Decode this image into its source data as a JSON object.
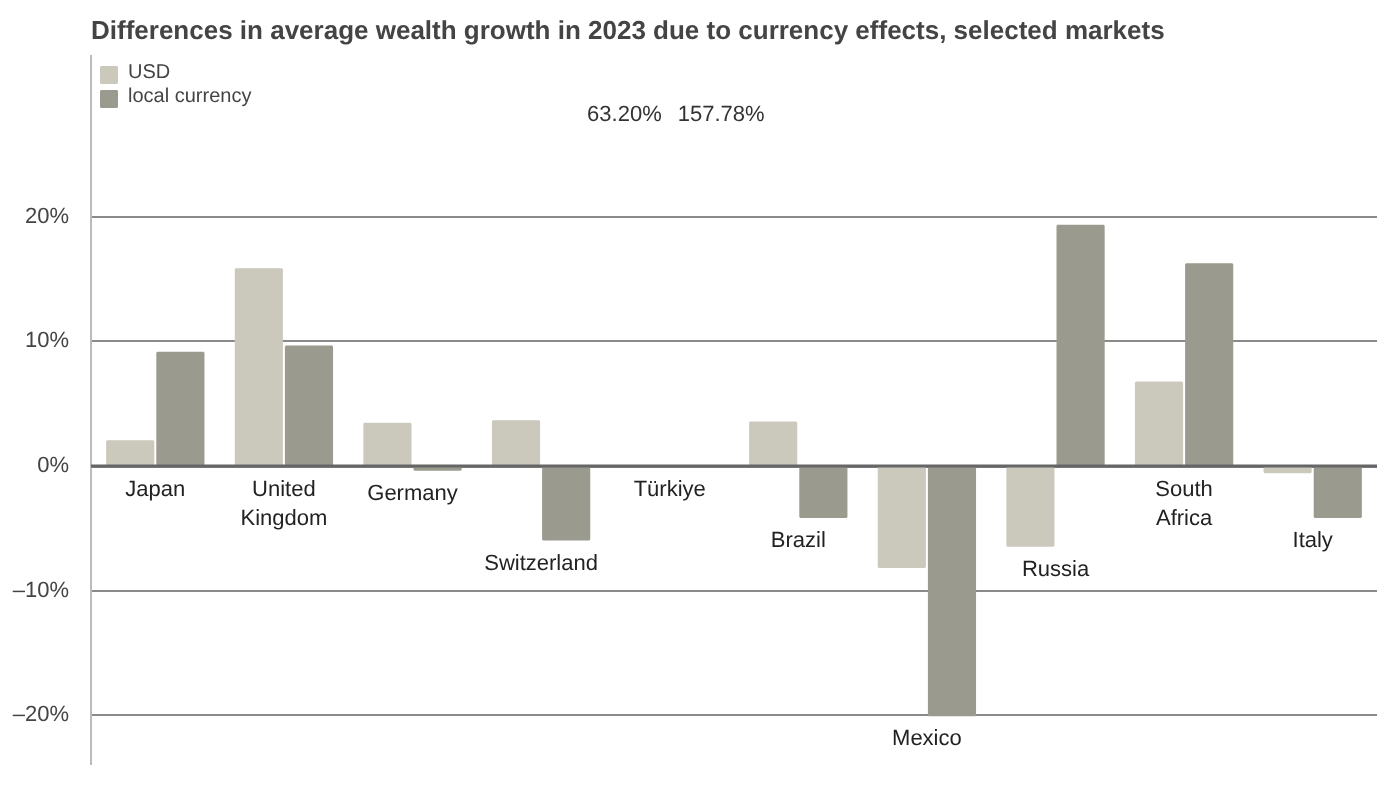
{
  "chart_data": {
    "type": "bar",
    "title": "Differences in average wealth growth in 2023 due to currency effects, selected markets",
    "categories": [
      "Japan",
      "United Kingdom",
      "Germany",
      "Switzerland",
      "Türkiye",
      "Brazil",
      "Mexico",
      "Russia",
      "South Africa",
      "Italy"
    ],
    "series": [
      {
        "name": "USD",
        "color": "#cbc9bc",
        "values": [
          2.0,
          15.8,
          3.4,
          3.6,
          null,
          3.5,
          -8.1,
          -6.4,
          6.7,
          -0.5
        ]
      },
      {
        "name": "local currency",
        "color": "#9a9a8e",
        "values": [
          9.1,
          9.6,
          -0.3,
          -5.9,
          null,
          -4.1,
          -20.0,
          19.3,
          16.2,
          -4.1
        ]
      }
    ],
    "annotations": [
      "63.20%",
      "157.78%"
    ],
    "ylim": [
      -24,
      33
    ],
    "yticks": [
      {
        "value": -20,
        "label": "–20%"
      },
      {
        "value": -10,
        "label": "–10%"
      },
      {
        "value": 0,
        "label": "0%"
      },
      {
        "value": 10,
        "label": "10%"
      },
      {
        "value": 20,
        "label": "20%"
      }
    ],
    "grid": "y",
    "legend": "top left"
  }
}
